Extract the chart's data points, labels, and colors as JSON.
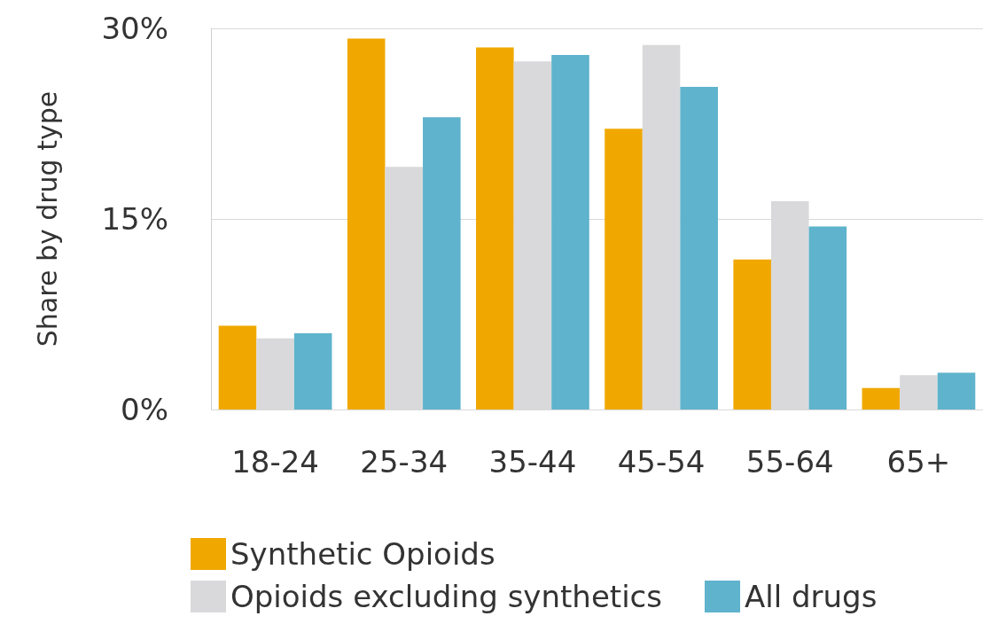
{
  "chart_data": {
    "type": "bar",
    "ylabel": "Share by drug type",
    "categories": [
      "18-24",
      "25-34",
      "35-44",
      "45-54",
      "55-64",
      "65+"
    ],
    "series": [
      {
        "name": "Synthetic Opioids",
        "color": "#f0a800",
        "values": [
          6.6,
          29.2,
          28.5,
          22.1,
          11.8,
          1.7
        ]
      },
      {
        "name": "Opioids excluding synthetics",
        "color": "#d9d9db",
        "values": [
          5.6,
          19.1,
          27.4,
          28.7,
          16.4,
          2.7
        ]
      },
      {
        "name": "All drugs",
        "color": "#5fb3cc",
        "values": [
          6.0,
          23.0,
          27.9,
          25.4,
          14.4,
          2.9
        ]
      }
    ],
    "ylim": [
      0,
      30
    ],
    "yticks": [
      {
        "value": 0,
        "label": "0%"
      },
      {
        "value": 15,
        "label": "15%"
      },
      {
        "value": 30,
        "label": "30%"
      }
    ],
    "grid": "y",
    "legend": "bottom"
  }
}
